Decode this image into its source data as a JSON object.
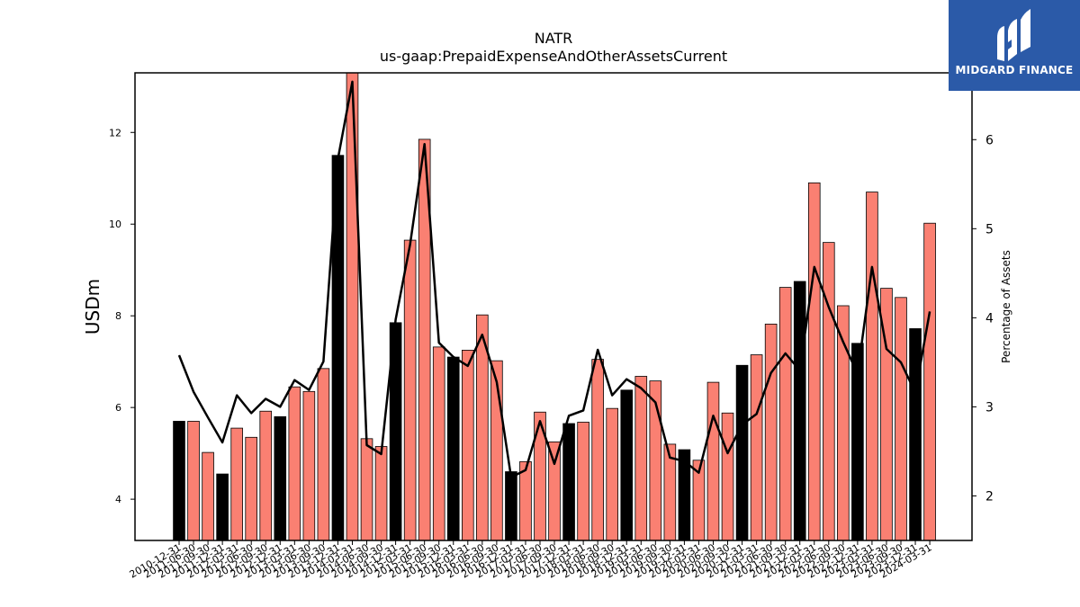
{
  "logo": {
    "text": "MIDGARD FINANCE"
  },
  "chart_data": {
    "type": "bar",
    "title": "NATR",
    "subtitle": "us-gaap:PrepaidExpenseAndOtherAssetsCurrent",
    "ylabel": "USDm",
    "y2label": "Percentage of Assets",
    "ylim": [
      3.1,
      13.3
    ],
    "y2lim": [
      1.5,
      6.75
    ],
    "yticks": [
      4,
      6,
      8,
      10,
      12
    ],
    "y2ticks": [
      2,
      3,
      4,
      5,
      6
    ],
    "colors": {
      "bar": "#fa8072",
      "bar_highlight": "#000000",
      "line": "#000000"
    },
    "xtick_labels": [
      "2010-12-31",
      "2011-06-30",
      "2011-09-30",
      "2011-12-31",
      "2012-03-31",
      "2012-06-30",
      "2012-09-30",
      "2012-12-31",
      "2013-03-31",
      "2013-06-30",
      "2013-09-30",
      "2013-12-31",
      "2014-03-31",
      "2014-06-30",
      "2014-09-30",
      "2014-12-31",
      "2015-03-31",
      "2015-06-30",
      "2015-09-30",
      "2015-12-31",
      "2016-03-31",
      "2016-06-30",
      "2016-09-30",
      "2016-12-31",
      "2017-03-31",
      "2017-06-30",
      "2017-09-30",
      "2017-12-31",
      "2018-03-31",
      "2018-06-30",
      "2018-09-30",
      "2018-12-31",
      "2019-03-31",
      "2019-06-30",
      "2019-09-30",
      "2019-12-31",
      "2020-03-31",
      "2020-06-30",
      "2020-09-30",
      "2020-12-31",
      "2021-03-31",
      "2021-06-30",
      "2021-09-30",
      "2021-12-31",
      "2022-03-31",
      "2022-06-30",
      "2022-09-30",
      "2022-12-31",
      "2023-03-31",
      "2023-06-30",
      "2023-09-30",
      "2023-12-31",
      "2024-03-31"
    ],
    "series": [
      {
        "type": "bar",
        "axis": "left",
        "values": [
          5.7,
          5.7,
          5.02,
          4.55,
          5.55,
          5.35,
          5.92,
          5.8,
          6.45,
          6.35,
          6.85,
          11.5,
          13.3,
          5.32,
          5.15,
          7.85,
          9.65,
          11.85,
          7.32,
          7.1,
          7.25,
          8.02,
          7.02,
          4.6,
          4.82,
          5.9,
          5.25,
          5.65,
          5.68,
          7.05,
          5.98,
          6.38,
          6.68,
          6.58,
          5.2,
          5.08,
          4.85,
          6.55,
          5.88,
          6.92,
          7.15,
          7.82,
          8.62,
          8.75,
          10.9,
          9.6,
          8.22,
          7.4,
          10.7,
          8.6,
          8.4,
          7.72,
          10.02
        ],
        "highlighted": [
          true,
          false,
          false,
          true,
          false,
          false,
          false,
          true,
          false,
          false,
          false,
          true,
          false,
          false,
          false,
          true,
          false,
          false,
          false,
          true,
          false,
          false,
          false,
          true,
          false,
          false,
          false,
          true,
          false,
          false,
          false,
          true,
          false,
          false,
          false,
          true,
          false,
          false,
          false,
          true,
          false,
          false,
          false,
          true,
          false,
          false,
          false,
          true,
          false,
          false,
          false,
          true,
          false
        ]
      },
      {
        "type": "line",
        "axis": "right",
        "values": [
          3.58,
          3.17,
          2.88,
          2.6,
          3.13,
          2.93,
          3.09,
          3.0,
          3.3,
          3.19,
          3.51,
          5.78,
          6.65,
          2.57,
          2.47,
          3.98,
          4.82,
          5.95,
          3.72,
          3.56,
          3.46,
          3.81,
          3.28,
          2.21,
          2.29,
          2.84,
          2.36,
          2.9,
          2.96,
          3.64,
          3.13,
          3.31,
          3.21,
          3.05,
          2.43,
          2.39,
          2.26,
          2.9,
          2.48,
          2.8,
          2.92,
          3.38,
          3.6,
          3.41,
          4.57,
          4.12,
          3.73,
          3.37,
          4.57,
          3.65,
          3.5,
          3.16,
          4.07
        ]
      }
    ]
  }
}
